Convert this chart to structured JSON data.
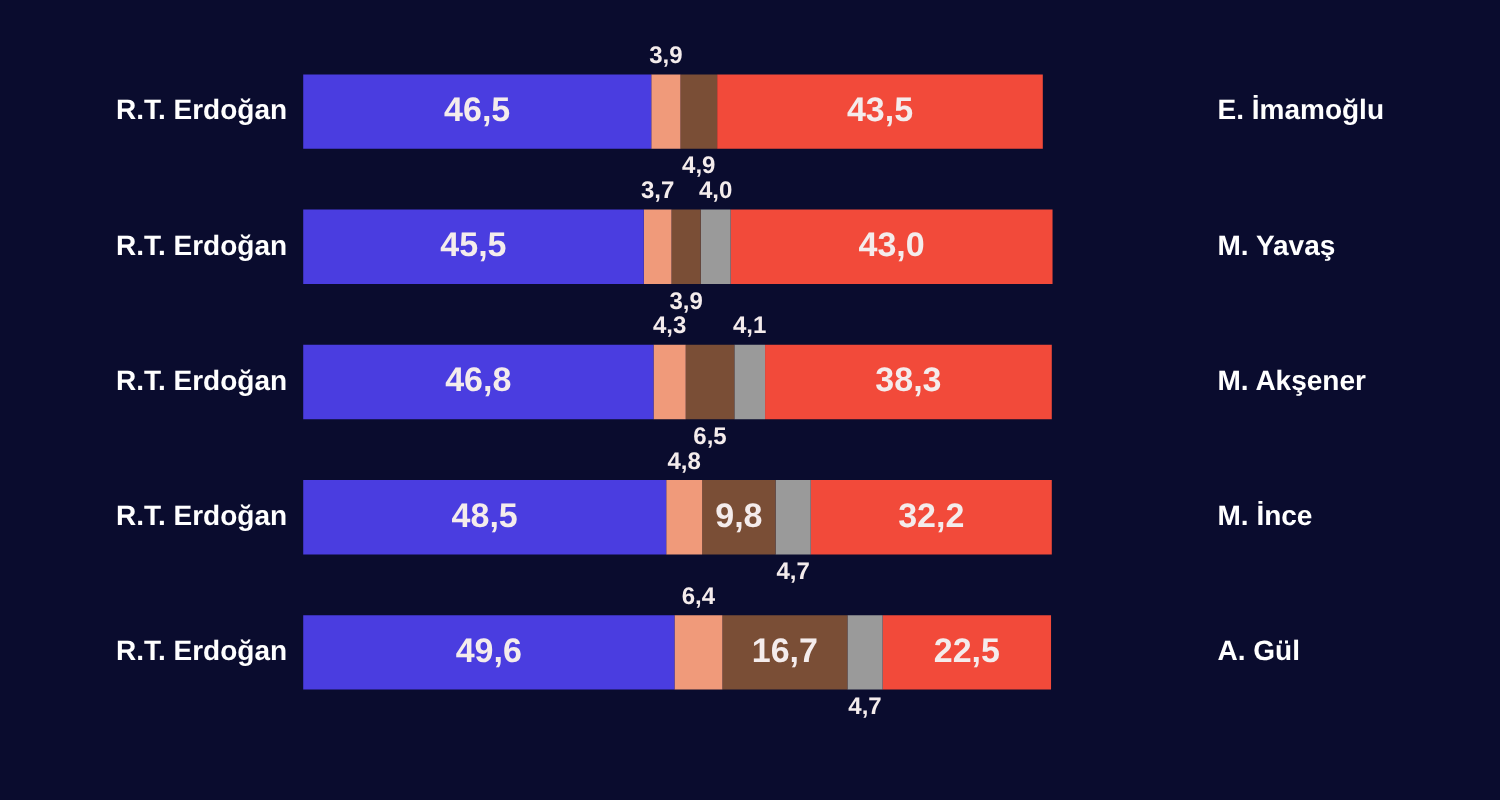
{
  "chart_data": {
    "type": "bar",
    "orientation": "horizontal",
    "stacked": true,
    "tick_labels": "y",
    "legend": false,
    "categories": [
      "R.T. Erdoğan",
      "R.T. Erdoğan",
      "R.T. Erdoğan",
      "R.T. Erdoğan",
      "R.T. Erdoğan"
    ],
    "y2_categories": [
      "E. İmamoğlu",
      "M. Yavaş",
      "M. Akşener",
      "M. İnce",
      "A. Gül"
    ],
    "series": [
      {
        "color": "#4a3de0",
        "values": [
          46.5,
          45.5,
          46.8,
          48.5,
          49.6
        ],
        "value_labels": [
          "46,5",
          "45,5",
          "46,8",
          "48,5",
          "49,6"
        ]
      },
      {
        "color": "#f09a7a",
        "values": [
          3.9,
          3.7,
          4.3,
          4.8,
          6.4
        ],
        "value_labels": [
          "3,9",
          "3,7",
          "4,3",
          "4,8",
          "6,4"
        ]
      },
      {
        "color": "#7a4e36",
        "values": [
          4.9,
          3.9,
          6.5,
          9.8,
          16.7
        ],
        "value_labels": [
          "4,9",
          "3,9",
          "6,5",
          "9,8",
          "16,7"
        ]
      },
      {
        "color": "#9a9a9a",
        "values": [
          null,
          4.0,
          4.1,
          4.7,
          4.7
        ],
        "value_labels": [
          null,
          "4,0",
          "4,1",
          "4,7",
          "4,7"
        ]
      },
      {
        "color": "#f24a3a",
        "values": [
          43.5,
          43.0,
          38.3,
          32.2,
          22.5
        ],
        "value_labels": [
          "43,5",
          "43,0",
          "38,3",
          "32,2",
          "22,5"
        ]
      }
    ]
  }
}
